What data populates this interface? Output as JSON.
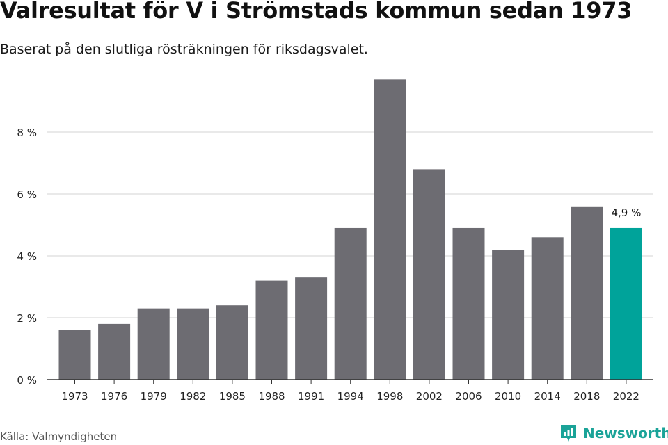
{
  "header": {
    "title": "Valresultat för V i Strömstads kommun sedan 1973",
    "subtitle": "Baserat på den slutliga rösträkningen för riksdagsvalet."
  },
  "footer": {
    "source": "Källa: Valmyndigheten",
    "brand": "Newsworthy",
    "brand_icon": "newsworthy-logo-icon"
  },
  "colors": {
    "bar": "#6d6c72",
    "highlight": "#00a39a",
    "grid": "#dcdcdc",
    "axis": "#333333",
    "brand": "#1aa398"
  },
  "chart_data": {
    "type": "bar",
    "categories": [
      "1973",
      "1976",
      "1979",
      "1982",
      "1985",
      "1988",
      "1991",
      "1994",
      "1998",
      "2002",
      "2006",
      "2010",
      "2014",
      "2018",
      "2022"
    ],
    "values": [
      1.6,
      1.8,
      2.3,
      2.3,
      2.4,
      3.2,
      3.3,
      4.9,
      9.7,
      6.8,
      4.9,
      4.2,
      4.6,
      5.6,
      4.9
    ],
    "ylim": [
      0,
      10
    ],
    "yticks": [
      0,
      2,
      4,
      6,
      8
    ],
    "ytick_labels": [
      "0 %",
      "2 %",
      "4 %",
      "6 %",
      "8 %"
    ],
    "highlight_index": 14,
    "annotation": "4,9 %",
    "xlabel": "",
    "ylabel": "",
    "grid": true
  }
}
